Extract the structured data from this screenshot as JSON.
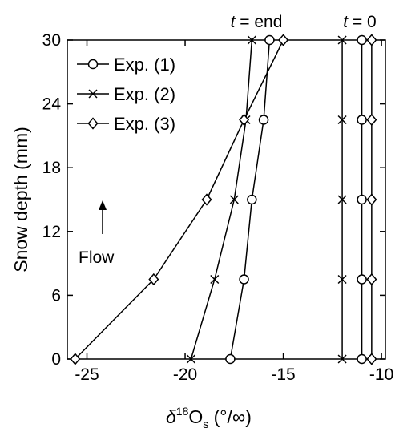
{
  "chart_data": {
    "type": "line",
    "title": "",
    "xlabel": {
      "delta": "δ",
      "sup": "18",
      "main": "O",
      "sub": "s",
      "unit": " (°/∞)"
    },
    "ylabel": "Snow depth (mm)",
    "xlim": [
      -26,
      -9.8
    ],
    "ylim": [
      0,
      30
    ],
    "xticks": [
      -25,
      -20,
      -15,
      -10
    ],
    "xtick_labels": [
      "-25",
      "-20",
      "-15",
      "-10"
    ],
    "yticks": [
      0,
      6,
      12,
      18,
      24,
      30
    ],
    "ytick_labels": [
      "0",
      "6",
      "12",
      "18",
      "24",
      "30"
    ],
    "grid": false,
    "legend_position": "top-left",
    "colors": {
      "line": "#000000",
      "background": "#ffffff"
    },
    "depths": [
      0,
      7.5,
      15,
      22.5,
      30
    ],
    "series": [
      {
        "name": "Exp. (1)",
        "marker": "circle",
        "end": [
          -17.7,
          -17.0,
          -16.6,
          -16.0,
          -15.7
        ],
        "initial": -11.0
      },
      {
        "name": "Exp. (2)",
        "marker": "cross",
        "end": [
          -19.7,
          -18.5,
          -17.5,
          -16.9,
          -16.6
        ],
        "initial": -12.0
      },
      {
        "name": "Exp. (3)",
        "marker": "diamond",
        "end": [
          -25.6,
          -21.6,
          -18.9,
          -17.0,
          -15.0
        ],
        "initial": -10.5
      }
    ],
    "annotations": {
      "t_end": {
        "italic": "t",
        "rest": " = end"
      },
      "t_zero": {
        "italic": "t",
        "rest": " = 0"
      },
      "flow": "Flow"
    }
  }
}
